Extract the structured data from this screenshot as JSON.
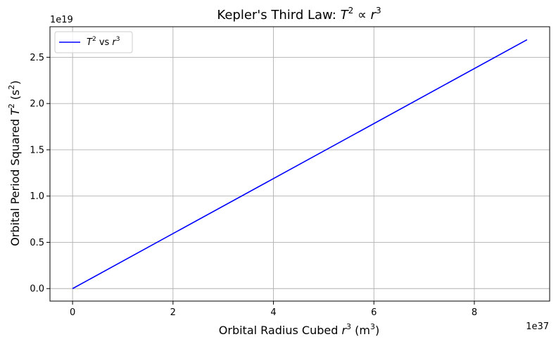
{
  "chart_data": {
    "type": "line",
    "title": "Kepler's Third Law: T² ∝ r³",
    "title_parts": {
      "prefix": "Kepler's Third Law: ",
      "t": "T",
      "two": "2",
      "prop": " ∝ ",
      "r": "r",
      "three": "3"
    },
    "xlabel_parts": {
      "prefix": "Orbital Radius Cubed ",
      "r": "r",
      "sup": "3",
      "unit_open": " (m",
      "unit_sup": "3",
      "unit_close": ")"
    },
    "ylabel_parts": {
      "prefix": "Orbital Period Squared ",
      "t": "T",
      "sup": "2",
      "unit_open": " (s",
      "unit_sup": "2",
      "unit_close": ")"
    },
    "x_offset_label": "1e37",
    "y_offset_label": "1e19",
    "x_scale": 1e+37,
    "y_scale": 1e+19,
    "xlim": [
      -0.45,
      9.5
    ],
    "ylim": [
      -0.135,
      2.83
    ],
    "xticks": [
      0,
      2,
      4,
      6,
      8
    ],
    "yticks": [
      0.0,
      0.5,
      1.0,
      1.5,
      2.0,
      2.5
    ],
    "xtick_labels": [
      "0",
      "2",
      "4",
      "6",
      "8"
    ],
    "ytick_labels": [
      "0.0",
      "0.5",
      "1.0",
      "1.5",
      "2.0",
      "2.5"
    ],
    "grid": true,
    "legend_position": "top-left",
    "series": [
      {
        "name": "T² vs r³",
        "legend_parts": {
          "t": "T",
          "tsup": "2",
          "vs": " vs ",
          "r": "r",
          "rsup": "3"
        },
        "color": "#0000ff",
        "x": [
          0.0,
          9.05
        ],
        "y": [
          0.0,
          2.69
        ]
      }
    ]
  }
}
